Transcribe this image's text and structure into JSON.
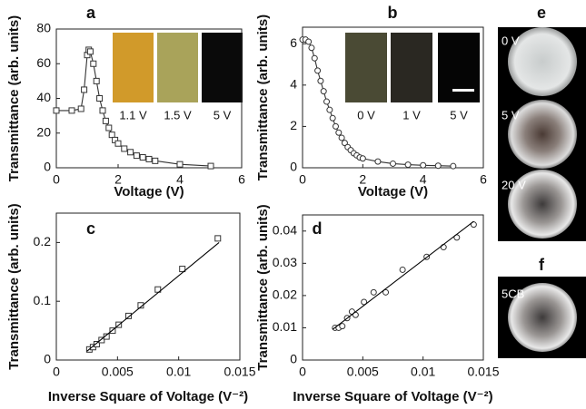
{
  "chart_data": [
    {
      "type": "line",
      "panel_label": "a",
      "x_label": "Voltage (V)",
      "y_label": "Transmittance (arb. units)",
      "xlim": [
        0,
        6
      ],
      "xticks": [
        0,
        2,
        4,
        6
      ],
      "ylim": [
        0,
        80
      ],
      "yticks": [
        0,
        20,
        40,
        60,
        80
      ],
      "insets": [
        "1.1 V",
        "1.5 V",
        "5 V"
      ],
      "series": [
        {
          "marker": "square",
          "color": "#333333",
          "x": [
            0,
            0.5,
            0.8,
            0.9,
            1.0,
            1.05,
            1.1,
            1.2,
            1.3,
            1.4,
            1.5,
            1.6,
            1.7,
            1.8,
            1.9,
            2.0,
            2.2,
            2.4,
            2.6,
            2.8,
            3.0,
            3.2,
            4.0,
            5.0
          ],
          "values": [
            33,
            33,
            34,
            45,
            65,
            68,
            67,
            60,
            50,
            40,
            33,
            27,
            23,
            19,
            16,
            14,
            11,
            9,
            7,
            6,
            5,
            4,
            2,
            1
          ]
        }
      ]
    },
    {
      "type": "line",
      "panel_label": "b",
      "x_label": "Voltage (V)",
      "y_label": "Transmittance (arb. units)",
      "xlim": [
        0,
        6
      ],
      "xticks": [
        0,
        2,
        4,
        6
      ],
      "ylim": [
        0,
        6.8
      ],
      "yticks": [
        0,
        2,
        4,
        6
      ],
      "insets": [
        "0 V",
        "1 V",
        "5 V"
      ],
      "series": [
        {
          "marker": "circle",
          "color": "#333333",
          "x": [
            0,
            0.1,
            0.2,
            0.3,
            0.4,
            0.5,
            0.6,
            0.7,
            0.8,
            0.9,
            1.0,
            1.1,
            1.2,
            1.3,
            1.4,
            1.5,
            1.6,
            1.7,
            1.8,
            1.9,
            2.0,
            2.5,
            3.0,
            3.5,
            4.0,
            4.5,
            5.0
          ],
          "values": [
            6.2,
            6.2,
            6.1,
            5.8,
            5.3,
            4.7,
            4.2,
            3.7,
            3.2,
            2.8,
            2.4,
            2.0,
            1.7,
            1.45,
            1.2,
            1.0,
            0.85,
            0.7,
            0.6,
            0.5,
            0.45,
            0.3,
            0.2,
            0.15,
            0.12,
            0.1,
            0.08
          ]
        }
      ]
    },
    {
      "type": "scatter",
      "panel_label": "c",
      "x_label": "Inverse Square of Voltage (V⁻²)",
      "y_label": "Transmittance (arb. units)",
      "xlim": [
        0,
        0.015
      ],
      "xticks": [
        0,
        0.005,
        0.01,
        0.015
      ],
      "ylim": [
        0,
        0.25
      ],
      "yticks": [
        0,
        0.1,
        0.2
      ],
      "series": [
        {
          "marker": "square",
          "color": "#333333",
          "x": [
            0.0027,
            0.003,
            0.0033,
            0.0037,
            0.0041,
            0.0046,
            0.0051,
            0.0059,
            0.0069,
            0.0083,
            0.0103,
            0.0132
          ],
          "values": [
            0.018,
            0.022,
            0.027,
            0.034,
            0.04,
            0.05,
            0.06,
            0.075,
            0.093,
            0.12,
            0.155,
            0.207
          ]
        },
        {
          "fit": true,
          "color": "#000000",
          "x": [
            0.0025,
            0.0133
          ],
          "values": [
            0.015,
            0.2
          ]
        }
      ]
    },
    {
      "type": "scatter",
      "panel_label": "d",
      "x_label": "Inverse Square of Voltage (V⁻²)",
      "y_label": "Transmittance (arb. units)",
      "xlim": [
        0,
        0.015
      ],
      "xticks": [
        0,
        0.005,
        0.01,
        0.015
      ],
      "ylim": [
        0,
        0.045
      ],
      "yticks": [
        0,
        0.01,
        0.02,
        0.03,
        0.04
      ],
      "series": [
        {
          "marker": "circle",
          "color": "#333333",
          "x": [
            0.0027,
            0.003,
            0.0033,
            0.0037,
            0.0041,
            0.0044,
            0.0051,
            0.0059,
            0.0069,
            0.0083,
            0.0103,
            0.0117,
            0.0128,
            0.0142
          ],
          "values": [
            0.01,
            0.01,
            0.0105,
            0.013,
            0.015,
            0.014,
            0.018,
            0.021,
            0.021,
            0.028,
            0.032,
            0.035,
            0.038,
            0.042
          ]
        },
        {
          "fit": true,
          "color": "#000000",
          "x": [
            0.0025,
            0.0142
          ],
          "values": [
            0.0095,
            0.043
          ]
        }
      ]
    }
  ],
  "side_panels": [
    {
      "label": "e",
      "images": [
        "0 V",
        "5 V",
        "20 V"
      ]
    },
    {
      "label": "f",
      "images": [
        "5CB"
      ]
    }
  ]
}
